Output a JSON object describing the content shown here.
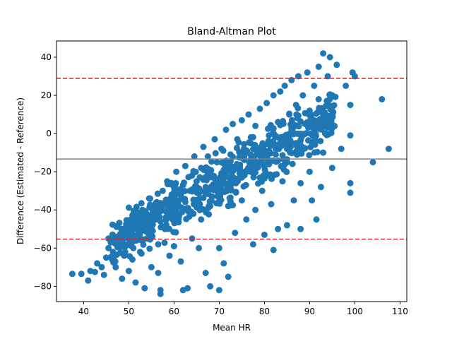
{
  "chart_data": {
    "type": "scatter",
    "title": "Bland-Altman Plot",
    "xlabel": "Mean HR",
    "ylabel": "Difference (Estimated - Reference)",
    "xlim": [
      34,
      111.5
    ],
    "ylim": [
      -88,
      48.5
    ],
    "xticks": [
      40,
      50,
      60,
      70,
      80,
      90,
      100,
      110
    ],
    "yticks": [
      -80,
      -60,
      -40,
      -20,
      0,
      20,
      40
    ],
    "grid": false,
    "point_color": "#1f77b4",
    "mean_line": {
      "y": -13.3,
      "color": "#808080",
      "style": "solid"
    },
    "limits_of_agreement": [
      {
        "y": 28.9,
        "color": "#d62728",
        "style": "dashed"
      },
      {
        "y": -55.3,
        "color": "#d62728",
        "style": "dashed"
      }
    ],
    "trend": {
      "slope": 1.38,
      "intercept": -122.0,
      "spread": 9
    },
    "points": [
      [
        37.5,
        -73.5
      ],
      [
        39.5,
        -73.5
      ],
      [
        41,
        -77
      ],
      [
        41.5,
        -72
      ],
      [
        42.5,
        -72.5
      ],
      [
        43,
        -68
      ],
      [
        44,
        -70
      ],
      [
        44.5,
        -74
      ],
      [
        45,
        -65
      ],
      [
        45.5,
        -60
      ],
      [
        45.5,
        -55
      ],
      [
        46,
        -57
      ],
      [
        46.5,
        -62
      ],
      [
        47,
        -56
      ],
      [
        47,
        -67
      ],
      [
        47.5,
        -54
      ],
      [
        48,
        -60
      ],
      [
        48.5,
        -76
      ],
      [
        49,
        -64
      ],
      [
        49,
        -58
      ],
      [
        49.5,
        -52
      ],
      [
        50,
        -72
      ],
      [
        50,
        -55
      ],
      [
        50.5,
        -50
      ],
      [
        51,
        -60
      ],
      [
        51,
        -46
      ],
      [
        51.5,
        -78
      ],
      [
        52,
        -53
      ],
      [
        52,
        -43
      ],
      [
        52.5,
        -62
      ],
      [
        53,
        -48
      ],
      [
        53,
        -40
      ],
      [
        53.5,
        -81
      ],
      [
        54,
        -55
      ],
      [
        54,
        -45
      ],
      [
        54.5,
        -34
      ],
      [
        55,
        -70
      ],
      [
        55,
        -50
      ],
      [
        55.5,
        -42
      ],
      [
        56,
        -38
      ],
      [
        56.5,
        -73
      ],
      [
        56.5,
        -58
      ],
      [
        57,
        -84
      ],
      [
        57,
        -82
      ],
      [
        57,
        -46
      ],
      [
        57.5,
        -30
      ],
      [
        58,
        -50
      ],
      [
        58,
        -37
      ],
      [
        58.5,
        -25
      ],
      [
        59,
        -64
      ],
      [
        59,
        -42
      ],
      [
        59.5,
        -32
      ],
      [
        60,
        -59
      ],
      [
        60,
        -28
      ],
      [
        60.5,
        -20
      ],
      [
        61,
        -45
      ],
      [
        61,
        -35
      ],
      [
        61.5,
        -67
      ],
      [
        62,
        -82
      ],
      [
        62,
        -27
      ],
      [
        62.5,
        -17
      ],
      [
        63,
        -81
      ],
      [
        63,
        -40
      ],
      [
        63.5,
        -30
      ],
      [
        64,
        -55
      ],
      [
        64,
        -22
      ],
      [
        64.5,
        -12
      ],
      [
        65,
        -36
      ],
      [
        65,
        -25
      ],
      [
        65.5,
        -60
      ],
      [
        66,
        -45
      ],
      [
        66,
        -18
      ],
      [
        66.5,
        -7
      ],
      [
        67,
        -28
      ],
      [
        67,
        -73
      ],
      [
        67.5,
        -12
      ],
      [
        68,
        -80
      ],
      [
        68,
        -38
      ],
      [
        68.5,
        -22
      ],
      [
        69,
        -3
      ],
      [
        69.5,
        -15
      ],
      [
        70,
        -60
      ],
      [
        70,
        -82
      ],
      [
        70,
        -30
      ],
      [
        70.5,
        -8
      ],
      [
        71,
        -68
      ],
      [
        71,
        -19
      ],
      [
        71.5,
        2
      ],
      [
        72,
        -75
      ],
      [
        72,
        -38
      ],
      [
        72.5,
        -11
      ],
      [
        73,
        -26
      ],
      [
        73,
        5
      ],
      [
        73.5,
        -52
      ],
      [
        74,
        -3
      ],
      [
        74.5,
        -18
      ],
      [
        75,
        -35
      ],
      [
        75,
        7
      ],
      [
        75.5,
        -8
      ],
      [
        76,
        -45
      ],
      [
        76.5,
        10
      ],
      [
        77,
        -20
      ],
      [
        77,
        -2
      ],
      [
        77.5,
        -58
      ],
      [
        78,
        -40
      ],
      [
        78,
        4
      ],
      [
        78.5,
        -15
      ],
      [
        79,
        13
      ],
      [
        79.5,
        -30
      ],
      [
        80,
        -6
      ],
      [
        80,
        -53
      ],
      [
        80.5,
        16
      ],
      [
        81,
        -22
      ],
      [
        81,
        -1
      ],
      [
        81.5,
        -37
      ],
      [
        82,
        20
      ],
      [
        82,
        -61
      ],
      [
        82.5,
        -11
      ],
      [
        83,
        -50
      ],
      [
        83,
        6
      ],
      [
        83.5,
        22
      ],
      [
        84,
        -25
      ],
      [
        84,
        -3
      ],
      [
        84.5,
        25
      ],
      [
        85,
        -48
      ],
      [
        85,
        -15
      ],
      [
        85.5,
        10
      ],
      [
        86,
        28
      ],
      [
        86.5,
        -35
      ],
      [
        87,
        -5
      ],
      [
        87,
        15
      ],
      [
        87.5,
        30
      ],
      [
        88,
        -50
      ],
      [
        88,
        -26
      ],
      [
        88.5,
        20
      ],
      [
        89,
        5
      ],
      [
        89.5,
        32
      ],
      [
        90,
        -20
      ],
      [
        90,
        12
      ],
      [
        90.5,
        -35
      ],
      [
        91,
        25
      ],
      [
        91,
        -5
      ],
      [
        91.5,
        -45
      ],
      [
        92,
        18
      ],
      [
        92,
        35
      ],
      [
        92.5,
        -28
      ],
      [
        93,
        -10
      ],
      [
        93,
        42
      ],
      [
        93.5,
        8
      ],
      [
        94,
        30
      ],
      [
        94.5,
        40
      ],
      [
        95,
        -18
      ],
      [
        95,
        20
      ],
      [
        96,
        36
      ],
      [
        97,
        -8
      ],
      [
        98,
        25
      ],
      [
        99,
        -26
      ],
      [
        99,
        -31
      ],
      [
        99,
        15
      ],
      [
        99,
        -1
      ],
      [
        99.5,
        32
      ],
      [
        100,
        30
      ],
      [
        104,
        -15
      ],
      [
        106,
        18
      ],
      [
        107.5,
        -8
      ]
    ]
  }
}
